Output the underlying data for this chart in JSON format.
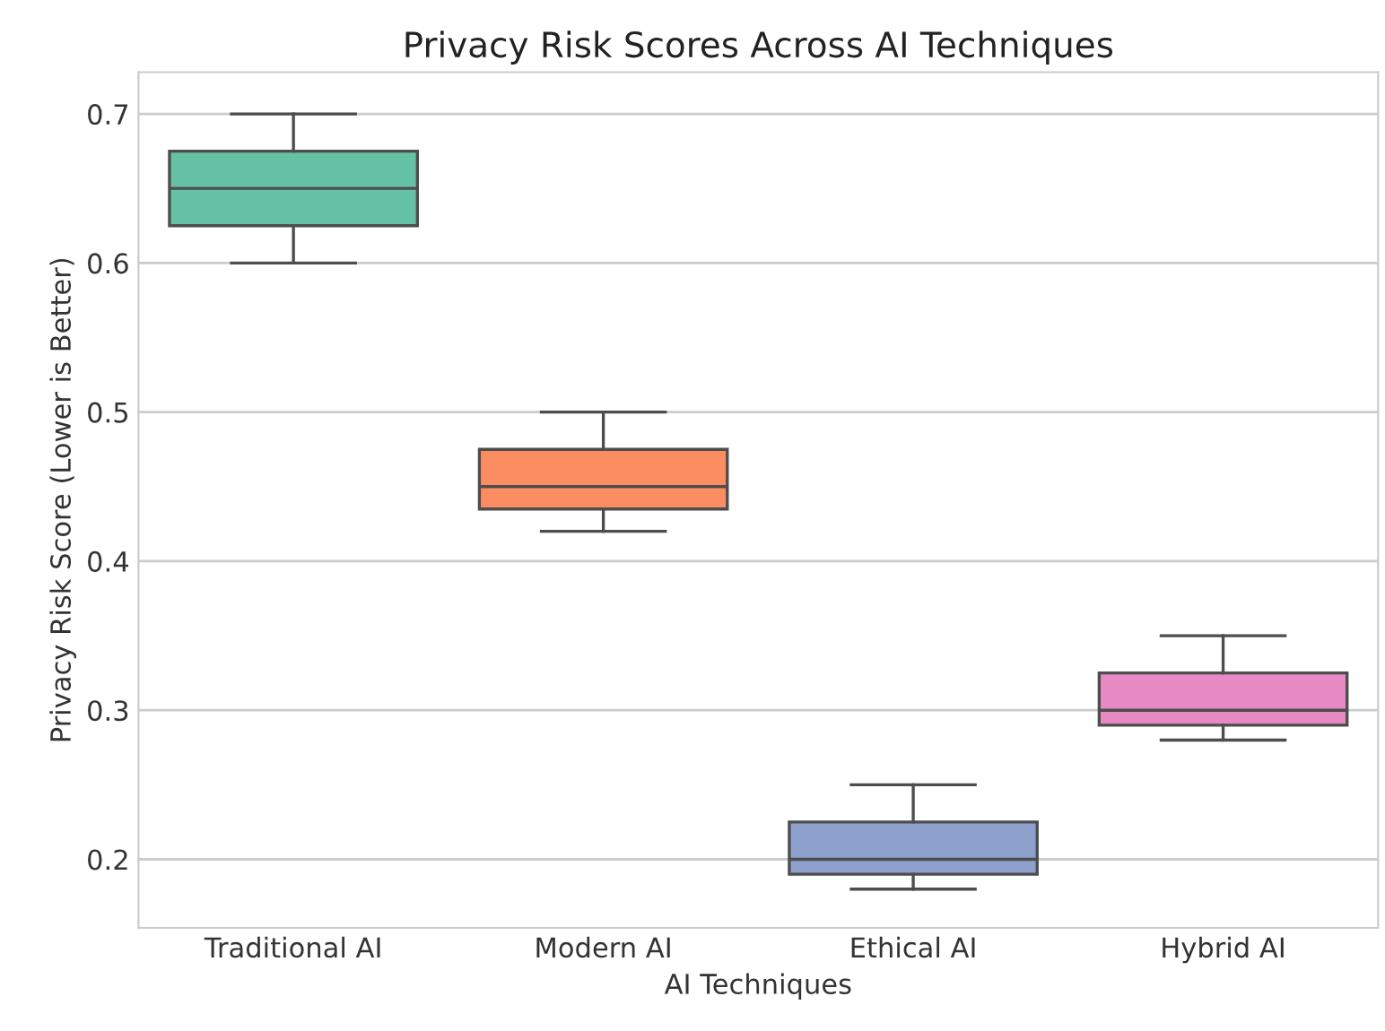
{
  "chart_data": {
    "type": "box",
    "title": "Privacy Risk Scores Across AI Techniques",
    "xlabel": "AI Techniques",
    "ylabel": "Privacy Risk Score (Lower is Better)",
    "categories": [
      "Traditional AI",
      "Modern AI",
      "Ethical AI",
      "Hybrid AI"
    ],
    "colors": [
      "#66c2a5",
      "#fc8d62",
      "#8da0cb",
      "#e78ac3"
    ],
    "boxes": [
      {
        "low": 0.6,
        "q1": 0.625,
        "median": 0.65,
        "q3": 0.675,
        "high": 0.7
      },
      {
        "low": 0.42,
        "q1": 0.435,
        "median": 0.45,
        "q3": 0.475,
        "high": 0.5
      },
      {
        "low": 0.18,
        "q1": 0.19,
        "median": 0.2,
        "q3": 0.225,
        "high": 0.25
      },
      {
        "low": 0.28,
        "q1": 0.29,
        "median": 0.3,
        "q3": 0.325,
        "high": 0.35
      }
    ],
    "ylim": [
      0.154,
      0.728
    ],
    "yticks": [
      0.2,
      0.3,
      0.4,
      0.5,
      0.6,
      0.7
    ],
    "grid": "y"
  }
}
